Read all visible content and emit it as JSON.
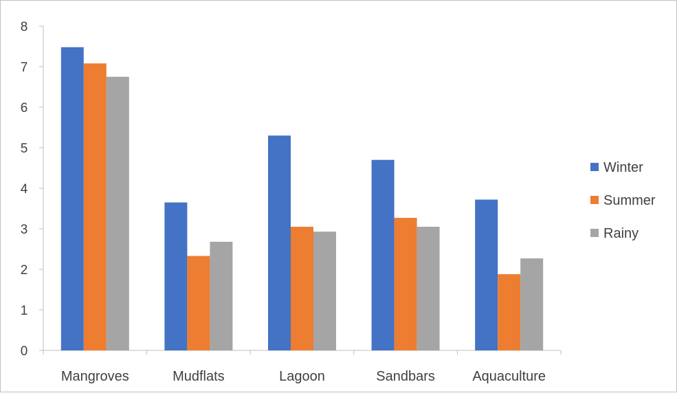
{
  "chart_data": {
    "type": "bar",
    "title": "",
    "xlabel": "",
    "ylabel": "",
    "categories": [
      "Mangroves",
      "Mudflats",
      "Lagoon",
      "Sandbars",
      "Aquaculture"
    ],
    "series": [
      {
        "name": "Winter",
        "color": "#4472C4",
        "values": [
          7.48,
          3.65,
          5.3,
          4.7,
          3.72
        ]
      },
      {
        "name": "Summer",
        "color": "#ED7D31",
        "values": [
          7.08,
          2.33,
          3.05,
          3.27,
          1.88
        ]
      },
      {
        "name": "Rainy",
        "color": "#A5A5A5",
        "values": [
          6.75,
          2.68,
          2.93,
          3.05,
          2.27
        ]
      }
    ],
    "ylim": [
      0,
      8
    ],
    "yticks": [
      0,
      1,
      2,
      3,
      4,
      5,
      6,
      7,
      8
    ],
    "grid": false,
    "legend_position": "right"
  }
}
